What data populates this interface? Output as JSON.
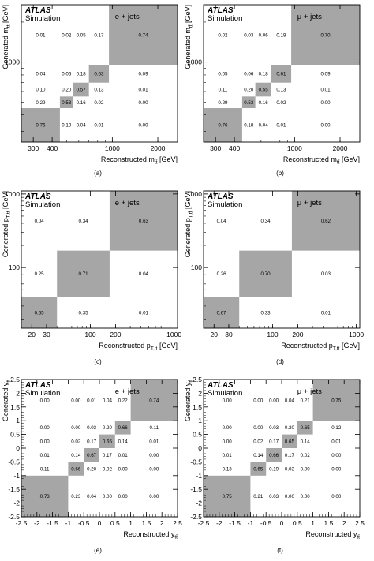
{
  "chart_data": [
    {
      "type": "heatmap",
      "panel_label": "(a)",
      "brand": "ATLAS",
      "subtitle": "Simulation",
      "channel": "e + jets",
      "xlabel": "Reconstructed m",
      "ylabel": "Generated m",
      "var_sub": "tt̄",
      "unit": " [GeV]",
      "scale": "log",
      "bins": [
        250,
        450,
        550,
        700,
        950,
        2700
      ],
      "x_ticks": [
        "300",
        "400",
        "1000",
        "2000"
      ],
      "x_tick_values": [
        300,
        400,
        1000,
        2000
      ],
      "y_ticks": [
        "1000"
      ],
      "y_tick_values": [
        1000
      ],
      "matrix": [
        [
          0.76,
          0.19,
          0.04,
          0.01,
          0.0
        ],
        [
          0.29,
          0.53,
          0.16,
          0.02,
          0.0
        ],
        [
          0.1,
          0.2,
          0.57,
          0.13,
          0.01
        ],
        [
          0.04,
          0.06,
          0.18,
          0.63,
          0.09
        ],
        [
          0.01,
          0.02,
          0.05,
          0.17,
          0.74
        ]
      ]
    },
    {
      "type": "heatmap",
      "panel_label": "(b)",
      "brand": "ATLAS",
      "subtitle": "Simulation",
      "channel": "μ + jets",
      "xlabel": "Reconstructed m",
      "ylabel": "Generated m",
      "var_sub": "tt̄",
      "unit": " [GeV]",
      "scale": "log",
      "bins": [
        250,
        450,
        550,
        700,
        950,
        2700
      ],
      "x_ticks": [
        "300",
        "400",
        "1000",
        "2000"
      ],
      "x_tick_values": [
        300,
        400,
        1000,
        2000
      ],
      "y_ticks": [
        "1000"
      ],
      "y_tick_values": [
        1000
      ],
      "matrix": [
        [
          0.76,
          0.18,
          0.04,
          0.01,
          0.0
        ],
        [
          0.29,
          0.53,
          0.16,
          0.02,
          0.0
        ],
        [
          0.11,
          0.2,
          0.55,
          0.13,
          0.01
        ],
        [
          0.05,
          0.06,
          0.18,
          0.61,
          0.09
        ],
        [
          0.02,
          0.03,
          0.06,
          0.19,
          0.7
        ]
      ]
    },
    {
      "type": "heatmap",
      "panel_label": "(c)",
      "brand": "ATLAS",
      "subtitle": "Simulation",
      "channel": "e + jets",
      "xlabel": "Reconstructed p",
      "ylabel": "Generated p",
      "var_sub": "T,tt̄",
      "unit": " [GeV]",
      "scale": "log",
      "bins": [
        15,
        40,
        170,
        1100
      ],
      "x_ticks": [
        "20",
        "30",
        "100",
        "200",
        "1000"
      ],
      "x_tick_values": [
        20,
        30,
        100,
        200,
        1000
      ],
      "y_ticks": [
        "100",
        "1000"
      ],
      "y_tick_values": [
        100,
        1000
      ],
      "matrix": [
        [
          0.65,
          0.35,
          0.01
        ],
        [
          0.25,
          0.71,
          0.04
        ],
        [
          0.04,
          0.34,
          0.63
        ]
      ]
    },
    {
      "type": "heatmap",
      "panel_label": "(d)",
      "brand": "ATLAS",
      "subtitle": "Simulation",
      "channel": "μ + jets",
      "xlabel": "Reconstructed p",
      "ylabel": "Generated p",
      "var_sub": "T,tt̄",
      "unit": " [GeV]",
      "scale": "log",
      "bins": [
        15,
        40,
        170,
        1100
      ],
      "x_ticks": [
        "20",
        "30",
        "100",
        "200",
        "1000"
      ],
      "x_tick_values": [
        20,
        30,
        100,
        200,
        1000
      ],
      "y_ticks": [
        "100",
        "1000"
      ],
      "y_tick_values": [
        100,
        1000
      ],
      "matrix": [
        [
          0.67,
          0.33,
          0.01
        ],
        [
          0.26,
          0.7,
          0.03
        ],
        [
          0.04,
          0.34,
          0.62
        ]
      ]
    },
    {
      "type": "heatmap",
      "panel_label": "(e)",
      "brand": "ATLAS",
      "subtitle": "Simulation",
      "channel": "e + jets",
      "xlabel": "Reconstructed y",
      "ylabel": "Generated y",
      "var_sub": "tt̄",
      "unit": "",
      "scale": "linear",
      "bins": [
        -2.5,
        -1.0,
        -0.5,
        0.0,
        0.5,
        1.0,
        2.5
      ],
      "x_ticks": [
        "-2.5",
        "-2",
        "-1.5",
        "-1",
        "-0.5",
        "0",
        "0.5",
        "1",
        "1.5",
        "2",
        "2.5"
      ],
      "x_tick_values": [
        -2.5,
        -2,
        -1.5,
        -1,
        -0.5,
        0,
        0.5,
        1,
        1.5,
        2,
        2.5
      ],
      "y_ticks": [
        "-2.5",
        "-2",
        "-1.5",
        "-1",
        "-0.5",
        "0",
        "0.5",
        "1",
        "1.5",
        "2",
        "2.5"
      ],
      "y_tick_values": [
        -2.5,
        -2,
        -1.5,
        -1,
        -0.5,
        0,
        0.5,
        1,
        1.5,
        2,
        2.5
      ],
      "matrix": [
        [
          0.73,
          0.23,
          0.04,
          0.0,
          0.0,
          0.0
        ],
        [
          0.11,
          0.66,
          0.2,
          0.02,
          0.0,
          0.0
        ],
        [
          0.01,
          0.14,
          0.67,
          0.17,
          0.01,
          0.0
        ],
        [
          0.0,
          0.02,
          0.17,
          0.66,
          0.14,
          0.01
        ],
        [
          0.0,
          0.0,
          0.03,
          0.2,
          0.66,
          0.11
        ],
        [
          0.0,
          0.0,
          0.01,
          0.04,
          0.22,
          0.74
        ]
      ]
    },
    {
      "type": "heatmap",
      "panel_label": "(f)",
      "brand": "ATLAS",
      "subtitle": "Simulation",
      "channel": "μ + jets",
      "xlabel": "Reconstructed y",
      "ylabel": "Generated y",
      "var_sub": "tt̄",
      "unit": "",
      "scale": "linear",
      "bins": [
        -2.5,
        -1.0,
        -0.5,
        0.0,
        0.5,
        1.0,
        2.5
      ],
      "x_ticks": [
        "-2.5",
        "-2",
        "-1.5",
        "-1",
        "-0.5",
        "0",
        "0.5",
        "1",
        "1.5",
        "2",
        "2.5"
      ],
      "x_tick_values": [
        -2.5,
        -2,
        -1.5,
        -1,
        -0.5,
        0,
        0.5,
        1,
        1.5,
        2,
        2.5
      ],
      "y_ticks": [
        "-2.5",
        "-2",
        "-1.5",
        "-1",
        "-0.5",
        "0",
        "0.5",
        "1",
        "1.5",
        "2",
        "2.5"
      ],
      "y_tick_values": [
        -2.5,
        -2,
        -1.5,
        -1,
        -0.5,
        0,
        0.5,
        1,
        1.5,
        2,
        2.5
      ],
      "matrix": [
        [
          0.75,
          0.21,
          0.03,
          0.0,
          0.0,
          0.0
        ],
        [
          0.13,
          0.65,
          0.19,
          0.03,
          0.0,
          0.0
        ],
        [
          0.01,
          0.14,
          0.66,
          0.17,
          0.02,
          0.0
        ],
        [
          0.0,
          0.02,
          0.17,
          0.65,
          0.14,
          0.01
        ],
        [
          0.0,
          0.0,
          0.03,
          0.2,
          0.65,
          0.12
        ],
        [
          0.0,
          0.0,
          0.0,
          0.04,
          0.21,
          0.75
        ]
      ]
    }
  ],
  "colors": {
    "diagonal_fill": "#a6a6a6",
    "frame": "#000000",
    "text": "#000000"
  }
}
